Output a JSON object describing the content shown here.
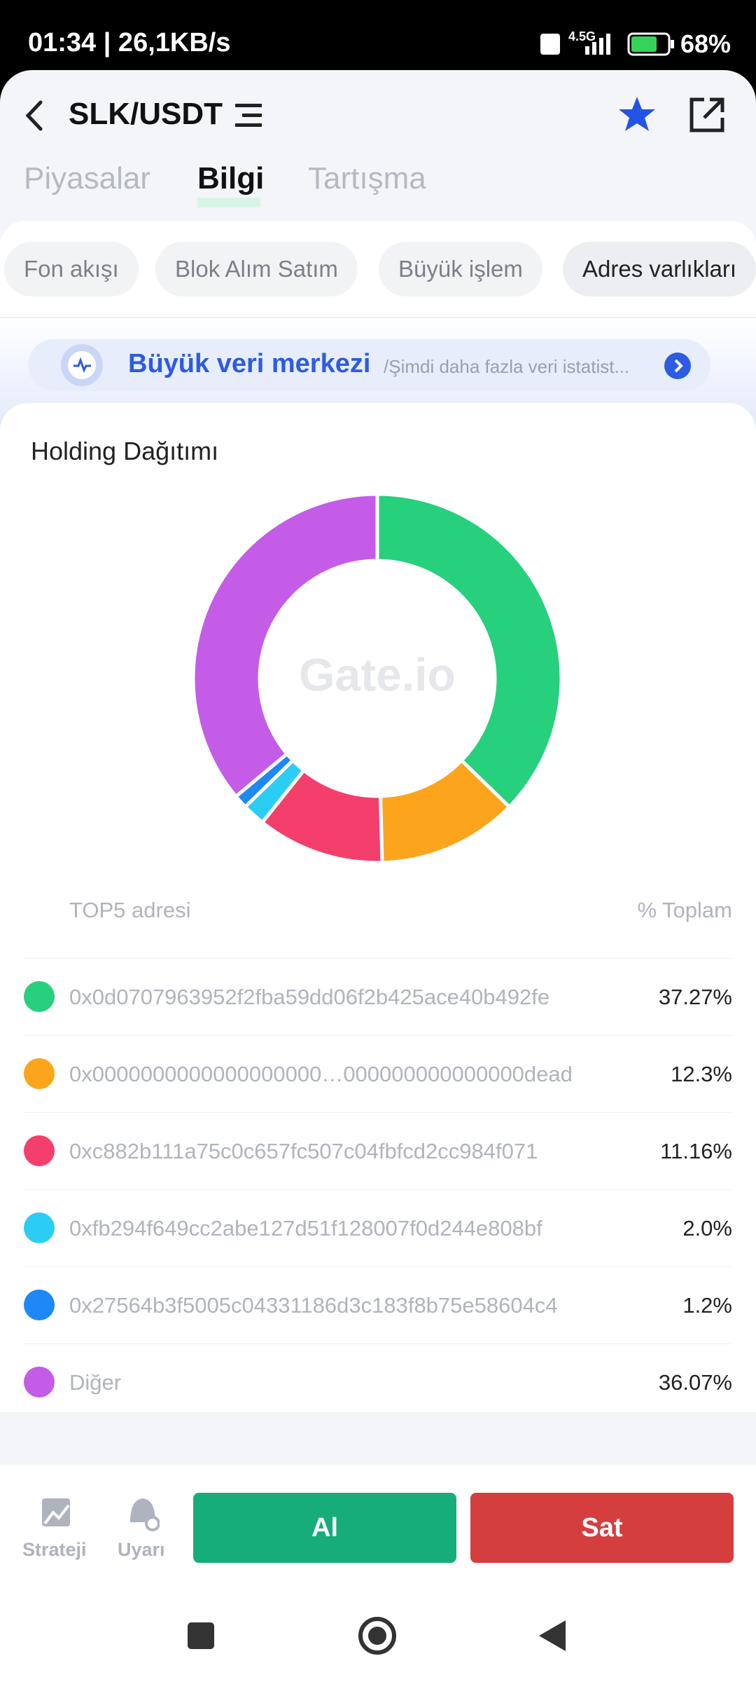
{
  "status_bar": {
    "time": "01:34 | 26,1KB/s",
    "network": "4.5G",
    "battery": "68%"
  },
  "header": {
    "pair": "SLK/USDT"
  },
  "tabs": [
    "Piyasalar",
    "Bilgi",
    "Tartışma"
  ],
  "chips": [
    "Fon akışı",
    "Blok Alım Satım",
    "Büyük işlem",
    "Adres varlıkları"
  ],
  "banner": {
    "title": "Büyük veri merkezi",
    "subtitle": "/Şimdi daha fazla veri istatist..."
  },
  "chart_data": {
    "type": "pie",
    "title": "Holding Dağıtımı",
    "watermark": "Gate.io",
    "column_headers": [
      "TOP5 adresi",
      "% Toplam"
    ],
    "categories": [
      "0x0d0707963952f2fba59dd06f2b425ace40b492fe",
      "0x0000000000000000000…000000000000000dead",
      "0xc882b111a75c0c657fc507c04fbfcd2cc984f071",
      "0xfb294f649cc2abe127d51f128007f0d244e808bf",
      "0x27564b3f5005c04331186d3c183f8b75e58604c4",
      "Diğer"
    ],
    "values": [
      37.27,
      12.3,
      11.16,
      2.0,
      1.2,
      36.07
    ],
    "value_labels": [
      "37.27%",
      "12.3%",
      "11.16%",
      "2.0%",
      "1.2%",
      "36.07%"
    ],
    "colors": [
      "#26d07c",
      "#fca41c",
      "#f43e6c",
      "#2ccdf5",
      "#1e88f5",
      "#c45ce8"
    ],
    "donut": true
  },
  "bottom_bar": {
    "strategy": "Strateji",
    "alert": "Uyarı",
    "buy": "Al",
    "sell": "Sat"
  }
}
